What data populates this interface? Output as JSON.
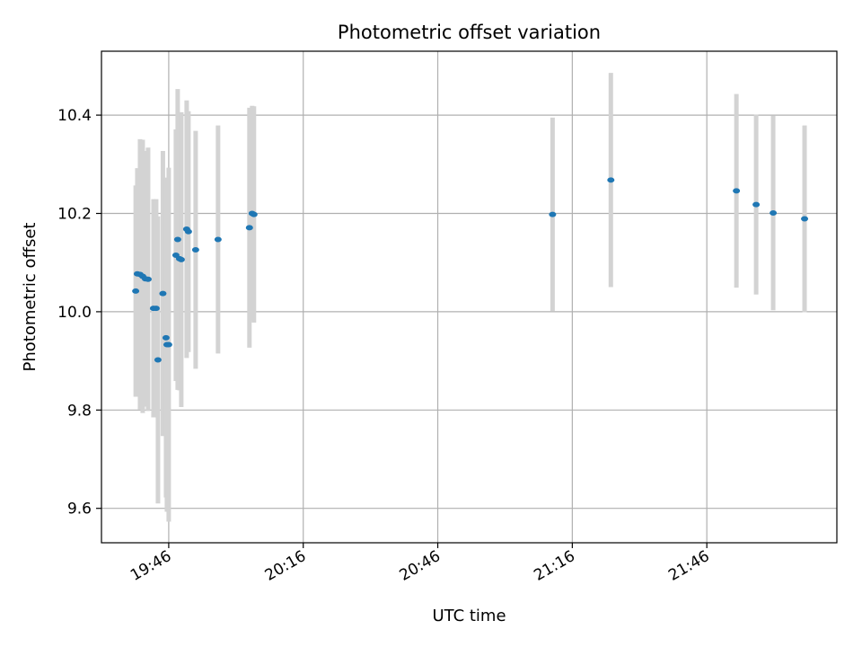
{
  "chart_data": {
    "type": "scatter",
    "title": "Photometric offset variation",
    "xlabel": "UTC time",
    "ylabel": "Photometric offset",
    "x_type": "time",
    "xlim": [
      "19:31",
      "22:15"
    ],
    "ylim": [
      9.53,
      10.53
    ],
    "x_ticks": [
      "19:46",
      "20:16",
      "20:46",
      "21:16",
      "21:46"
    ],
    "y_ticks": [
      9.6,
      9.8,
      10.0,
      10.2,
      10.4
    ],
    "y_tick_labels": [
      "9.6",
      "9.8",
      "10.0",
      "10.2",
      "10.4"
    ],
    "grid": true,
    "legend": "none",
    "colors": {
      "point": "#1f77b4",
      "errorbar": "#d3d3d3",
      "grid": "#b0b0b0"
    },
    "points": [
      {
        "x": "19:38:38",
        "y": 10.042,
        "yerr": 0.215
      },
      {
        "x": "19:39:00",
        "y": 10.077,
        "yerr": 0.215
      },
      {
        "x": "19:39:36",
        "y": 10.076,
        "yerr": 0.275
      },
      {
        "x": "19:40:12",
        "y": 10.072,
        "yerr": 0.278
      },
      {
        "x": "19:40:48",
        "y": 10.067,
        "yerr": 0.26
      },
      {
        "x": "19:41:24",
        "y": 10.066,
        "yerr": 0.268
      },
      {
        "x": "19:42:36",
        "y": 10.007,
        "yerr": 0.222
      },
      {
        "x": "19:43:12",
        "y": 10.007,
        "yerr": 0.222
      },
      {
        "x": "19:43:36",
        "y": 9.902,
        "yerr": 0.292
      },
      {
        "x": "19:44:42",
        "y": 10.037,
        "yerr": 0.29
      },
      {
        "x": "19:45:24",
        "y": 9.947,
        "yerr": 0.325
      },
      {
        "x": "19:45:36",
        "y": 9.933,
        "yerr": 0.34
      },
      {
        "x": "19:46:00",
        "y": 9.933,
        "yerr": 0.36
      },
      {
        "x": "19:47:36",
        "y": 10.115,
        "yerr": 0.256
      },
      {
        "x": "19:48:00",
        "y": 10.147,
        "yerr": 0.306
      },
      {
        "x": "19:48:24",
        "y": 10.108,
        "yerr": 0.268
      },
      {
        "x": "19:48:48",
        "y": 10.106,
        "yerr": 0.3
      },
      {
        "x": "19:50:00",
        "y": 10.168,
        "yerr": 0.262
      },
      {
        "x": "19:50:24",
        "y": 10.163,
        "yerr": 0.245
      },
      {
        "x": "19:52:00",
        "y": 10.126,
        "yerr": 0.242
      },
      {
        "x": "19:57:00",
        "y": 10.147,
        "yerr": 0.232
      },
      {
        "x": "20:04:00",
        "y": 10.171,
        "yerr": 0.244
      },
      {
        "x": "20:04:36",
        "y": 10.2,
        "yerr": 0.219
      },
      {
        "x": "20:05:00",
        "y": 10.198,
        "yerr": 0.22
      },
      {
        "x": "21:11:36",
        "y": 10.198,
        "yerr": 0.197
      },
      {
        "x": "21:24:36",
        "y": 10.268,
        "yerr": 0.218
      },
      {
        "x": "21:52:36",
        "y": 10.246,
        "yerr": 0.197
      },
      {
        "x": "21:57:00",
        "y": 10.218,
        "yerr": 0.183
      },
      {
        "x": "22:00:48",
        "y": 10.201,
        "yerr": 0.198
      },
      {
        "x": "22:07:48",
        "y": 10.189,
        "yerr": 0.19
      }
    ]
  }
}
